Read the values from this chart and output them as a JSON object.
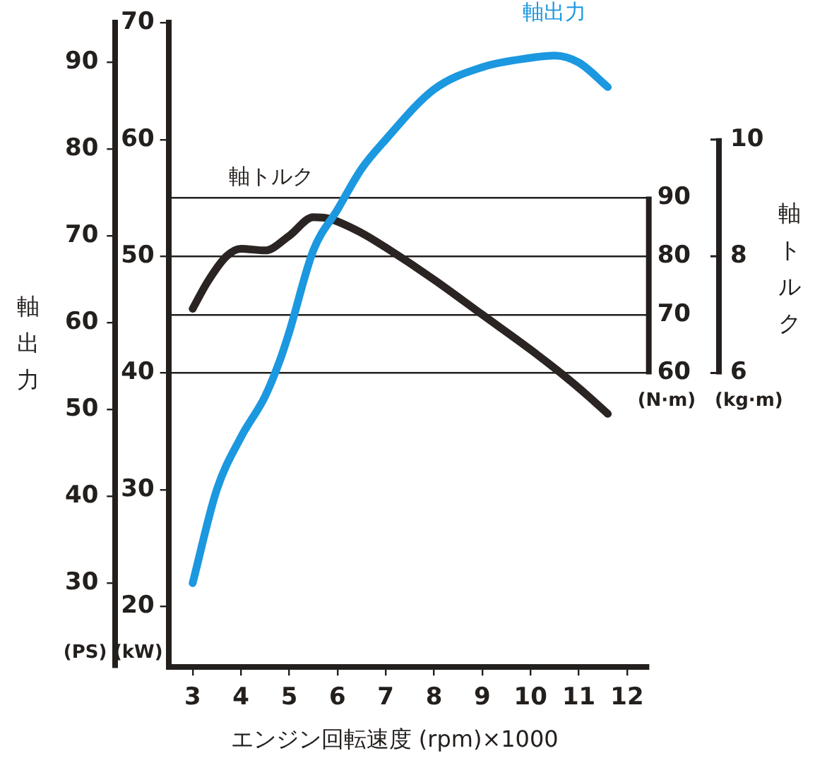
{
  "chart_data": {
    "type": "line",
    "xlabel": "エンジン回転速度 (rpm)×1000",
    "ylabel": "軸出力",
    "y2label": "軸トルク",
    "annotations": [
      "(PS)",
      "(kW)",
      "(N·m)",
      "(kg·m)",
      "6",
      "8",
      "10"
    ],
    "xlim": [
      2.5,
      12.45
    ],
    "xticks": [
      3,
      4,
      5,
      6,
      7,
      8,
      9,
      10,
      11,
      12
    ],
    "ylim": [
      14.8,
      70
    ],
    "yticks": [
      20,
      30,
      40,
      50,
      60,
      70
    ],
    "y2lim": [
      9.6,
      120
    ],
    "y2ticks": [
      60,
      70,
      80,
      90
    ],
    "y3lim": [
      20.3,
      94.5
    ],
    "y3ticks": [
      30,
      40,
      50,
      60,
      70,
      80,
      90
    ],
    "grid": "y2",
    "legend": false,
    "marker": "none",
    "line_style": "solid",
    "series": [
      {
        "name": "軸出力",
        "color": "#1b98e0",
        "axis": "y",
        "x": [
          3,
          3.5,
          4,
          4.5,
          4.8,
          5,
          5.5,
          6,
          6.5,
          7,
          8,
          9,
          10,
          10.5,
          11,
          11.6
        ],
        "values": [
          22,
          30,
          34.5,
          38,
          41,
          43.5,
          50.5,
          54,
          57.5,
          60,
          64.3,
          66.2,
          67,
          67.2,
          66.6,
          64.5
        ]
      },
      {
        "name": "軸トルク",
        "color": "#2a2422",
        "axis": "y2",
        "x": [
          3,
          3.3,
          3.7,
          4,
          4.5,
          5,
          5.5,
          5.8,
          6.5,
          7,
          8,
          9,
          10,
          10.7,
          11.2,
          11.6
        ],
        "values": [
          71,
          75.5,
          80,
          81.3,
          81,
          83.5,
          86.7,
          86.5,
          84,
          81.5,
          76,
          70,
          64,
          59.5,
          56,
          53
        ]
      }
    ]
  }
}
